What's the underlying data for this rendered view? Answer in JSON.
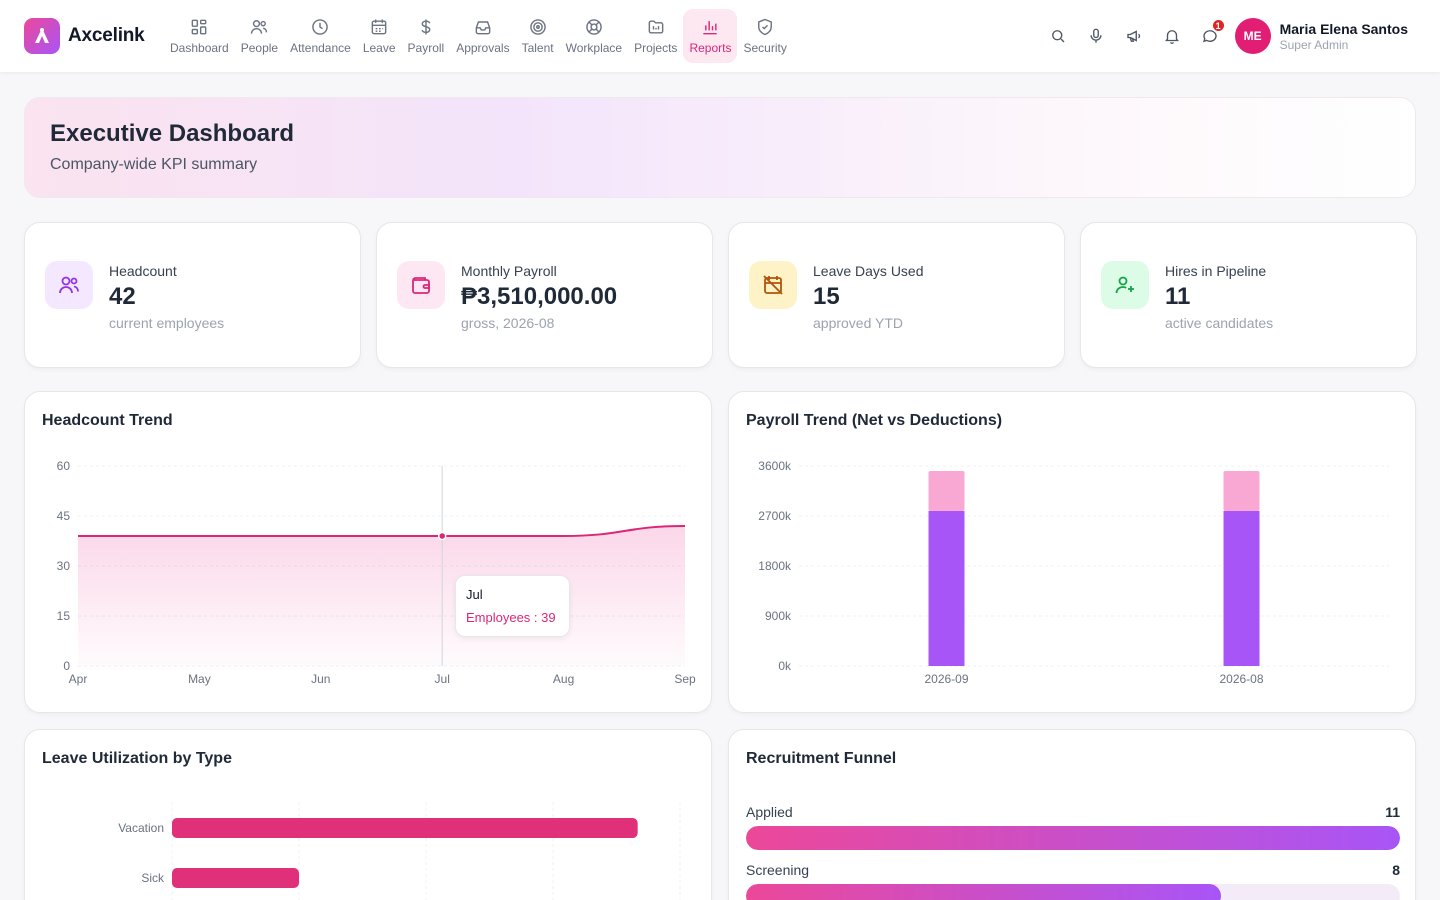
{
  "brand": {
    "name": "Axcelink"
  },
  "nav": [
    {
      "label": "Dashboard",
      "icon": "dashboard-icon"
    },
    {
      "label": "People",
      "icon": "people-icon"
    },
    {
      "label": "Attendance",
      "icon": "clock-icon"
    },
    {
      "label": "Leave",
      "icon": "calendar-icon"
    },
    {
      "label": "Payroll",
      "icon": "dollar-icon"
    },
    {
      "label": "Approvals",
      "icon": "inbox-icon"
    },
    {
      "label": "Talent",
      "icon": "target-icon"
    },
    {
      "label": "Workplace",
      "icon": "lifebuoy-icon"
    },
    {
      "label": "Projects",
      "icon": "folder-icon"
    },
    {
      "label": "Reports",
      "icon": "bar-chart-icon",
      "active": true
    },
    {
      "label": "Security",
      "icon": "shield-icon"
    }
  ],
  "header": {
    "notifications_count": "1",
    "user": {
      "initials": "ME",
      "name": "Maria Elena Santos",
      "role": "Super Admin"
    }
  },
  "hero": {
    "title": "Executive Dashboard",
    "subtitle": "Company-wide KPI summary"
  },
  "kpis": [
    {
      "label": "Headcount",
      "value": "42",
      "sub": "current employees",
      "icon": "users-icon",
      "color": "#9333ea",
      "bg": "#f3e8ff"
    },
    {
      "label": "Monthly Payroll",
      "value": "₱3,510,000.00",
      "sub": "gross, 2026-08",
      "icon": "wallet-icon",
      "color": "#db2777",
      "bg": "#fce7f3"
    },
    {
      "label": "Leave Days Used",
      "value": "15",
      "sub": "approved YTD",
      "icon": "calendar-off-icon",
      "color": "#b45309",
      "bg": "#fef3c7"
    },
    {
      "label": "Hires in Pipeline",
      "value": "11",
      "sub": "active candidates",
      "icon": "user-plus-icon",
      "color": "#16a34a",
      "bg": "#dcfce7"
    }
  ],
  "headcount_panel": {
    "title": "Headcount Trend",
    "tooltip": {
      "label": "Jul",
      "series": "Employees",
      "value": "39",
      "text": "Employees : 39"
    }
  },
  "payroll_panel": {
    "title": "Payroll Trend (Net vs Deductions)"
  },
  "leave_panel": {
    "title": "Leave Utilization by Type"
  },
  "funnel_panel": {
    "title": "Recruitment Funnel",
    "stages": [
      {
        "label": "Applied",
        "value": "11",
        "fraction": 1.0
      },
      {
        "label": "Screening",
        "value": "8",
        "fraction": 0.727
      }
    ]
  },
  "chart_data": [
    {
      "type": "area",
      "title": "Headcount Trend",
      "categories": [
        "Apr",
        "May",
        "Jun",
        "Jul",
        "Aug",
        "Sep"
      ],
      "series": [
        {
          "name": "Employees",
          "values": [
            39,
            39,
            39,
            39,
            39,
            42
          ]
        }
      ],
      "ylim": [
        0,
        60
      ],
      "yticks": [
        0,
        15,
        30,
        45,
        60
      ],
      "color": "#db2777",
      "grid": true
    },
    {
      "type": "bar",
      "stacked": true,
      "title": "Payroll Trend (Net vs Deductions)",
      "categories": [
        "2026-09",
        "2026-08"
      ],
      "series": [
        {
          "values": [
            2790,
            2790
          ],
          "color": "#a855f7"
        },
        {
          "values": [
            720,
            720
          ],
          "color": "#f9a8d4"
        }
      ],
      "ylim": [
        0,
        3600
      ],
      "yticks": [
        "0k",
        "900k",
        "1800k",
        "2700k",
        "3600k"
      ],
      "grid": true
    },
    {
      "type": "bar",
      "orientation": "horizontal",
      "title": "Leave Utilization by Type",
      "categories": [
        "Vacation",
        "Sick"
      ],
      "values": [
        11,
        3
      ],
      "xlim": [
        0,
        12
      ],
      "color": "#e0307a",
      "grid": true
    }
  ]
}
